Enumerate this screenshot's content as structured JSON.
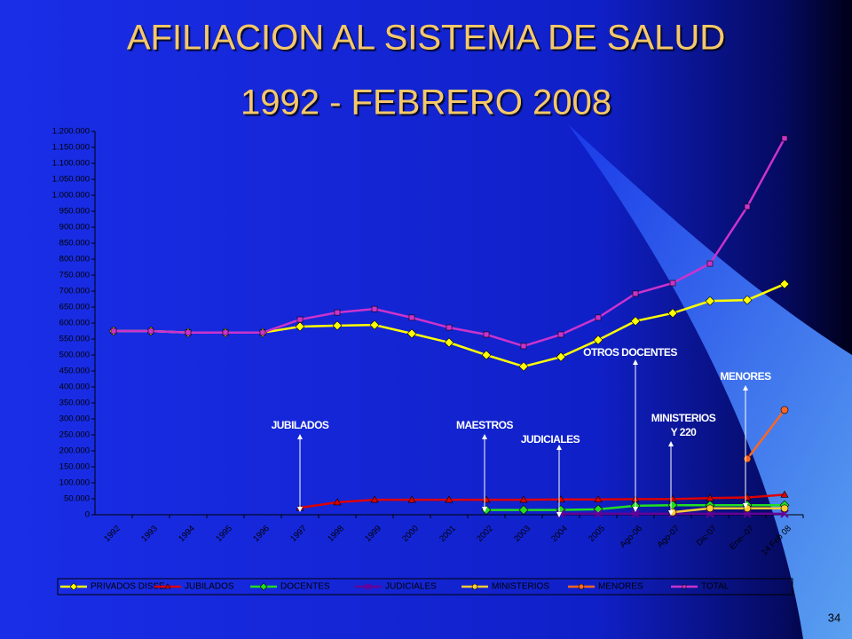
{
  "chart_data": {
    "type": "line",
    "title": "AFILIACION AL SISTEMA DE SALUD",
    "subtitle": "1992 - FEBRERO 2008",
    "categories": [
      "1992",
      "1993",
      "1994",
      "1995",
      "1996",
      "1997",
      "1998",
      "1999",
      "2000",
      "2001",
      "2002",
      "2003",
      "2004",
      "2005",
      "Ago-06",
      "Ago-07",
      "Dic-07",
      "Ene--07",
      "14 Feb 08"
    ],
    "series": [
      {
        "name": "PRIVADOS DISSE",
        "color": "#ffff00",
        "marker": "diamond",
        "values": [
          575000,
          575000,
          570000,
          570000,
          570000,
          589000,
          592000,
          594000,
          567000,
          539000,
          500000,
          464000,
          494000,
          547000,
          606000,
          631000,
          669000,
          672000,
          722000
        ]
      },
      {
        "name": "JUBILADOS",
        "color": "#dd0000",
        "marker": "triangle",
        "values": [
          null,
          null,
          null,
          null,
          null,
          22000,
          39000,
          47000,
          47000,
          47000,
          47000,
          47000,
          48000,
          48000,
          49000,
          49000,
          52000,
          54000,
          63000
        ]
      },
      {
        "name": "DOCENTES",
        "color": "#22dd22",
        "marker": "diamond",
        "values": [
          null,
          null,
          null,
          null,
          null,
          null,
          null,
          null,
          null,
          null,
          15000,
          15000,
          15000,
          17000,
          28000,
          30000,
          30000,
          30000,
          30000
        ]
      },
      {
        "name": "JUDICIALES",
        "color": "#660099",
        "marker": "x",
        "values": [
          null,
          null,
          null,
          null,
          null,
          null,
          null,
          null,
          null,
          null,
          null,
          null,
          3000,
          3000,
          3000,
          3000,
          3000,
          3000,
          3000
        ]
      },
      {
        "name": "MINISTERIOS",
        "color": "#ffcc33",
        "marker": "circle",
        "values": [
          null,
          null,
          null,
          null,
          null,
          null,
          null,
          null,
          null,
          null,
          null,
          null,
          null,
          null,
          null,
          8000,
          20000,
          20000,
          20000
        ]
      },
      {
        "name": "MENORES",
        "color": "#ff6622",
        "marker": "circle",
        "values": [
          null,
          null,
          null,
          null,
          null,
          null,
          null,
          null,
          null,
          null,
          null,
          null,
          null,
          null,
          null,
          null,
          null,
          175000,
          328000
        ]
      },
      {
        "name": "TOTAL",
        "color": "#cc33cc",
        "marker": "square",
        "values": [
          575000,
          575000,
          570000,
          570000,
          570000,
          611000,
          633000,
          644000,
          617000,
          586000,
          564000,
          528000,
          564000,
          617000,
          692000,
          725000,
          786000,
          964000,
          1178000
        ]
      }
    ],
    "ylim": [
      0,
      1200000
    ],
    "yticks": [
      0,
      {
        "value": 50000,
        "label": "50.000"
      },
      {
        "value": 100000,
        "label": "100.000"
      },
      {
        "value": 150000,
        "label": "150.000"
      },
      {
        "value": 200000,
        "label": "200.000"
      },
      {
        "value": 250000,
        "label": "250.000"
      },
      {
        "value": 300000,
        "label": "300.000"
      },
      {
        "value": 350000,
        "label": "350.000"
      },
      {
        "value": 400000,
        "label": "400.000"
      },
      {
        "value": 450000,
        "label": "450.000"
      },
      {
        "value": 500000,
        "label": "500.000"
      },
      {
        "value": 550000,
        "label": "550.000"
      },
      {
        "value": 600000,
        "label": "600.000"
      },
      {
        "value": 650000,
        "label": "650.000"
      },
      {
        "value": 700000,
        "label": "700.000"
      },
      {
        "value": 750000,
        "label": "750.000"
      },
      {
        "value": 800000,
        "label": "800.000"
      },
      {
        "value": 850000,
        "label": "850.000"
      },
      {
        "value": 900000,
        "label": "900.000"
      },
      {
        "value": 950000,
        "label": "950.000"
      },
      {
        "value": 1000000,
        "label": "1.000.000"
      },
      {
        "value": 1050000,
        "label": "1.050.000"
      },
      {
        "value": 1100000,
        "label": "1.100.000"
      },
      {
        "value": 1150000,
        "label": "1.150.000"
      },
      {
        "value": 1200000,
        "label": "1.200.000"
      }
    ],
    "legend": "bottom",
    "annotations": [
      {
        "lines": [
          "JUBILADOS"
        ]
      },
      {
        "lines": [
          "MAESTROS"
        ]
      },
      {
        "lines": [
          "JUDICIALES"
        ]
      },
      {
        "lines": [
          "OTROS DOCENTES"
        ]
      },
      {
        "lines": [
          "MINISTERIOS",
          "Y 220"
        ]
      },
      {
        "lines": [
          "MENORES"
        ]
      }
    ]
  },
  "page_number": "34"
}
